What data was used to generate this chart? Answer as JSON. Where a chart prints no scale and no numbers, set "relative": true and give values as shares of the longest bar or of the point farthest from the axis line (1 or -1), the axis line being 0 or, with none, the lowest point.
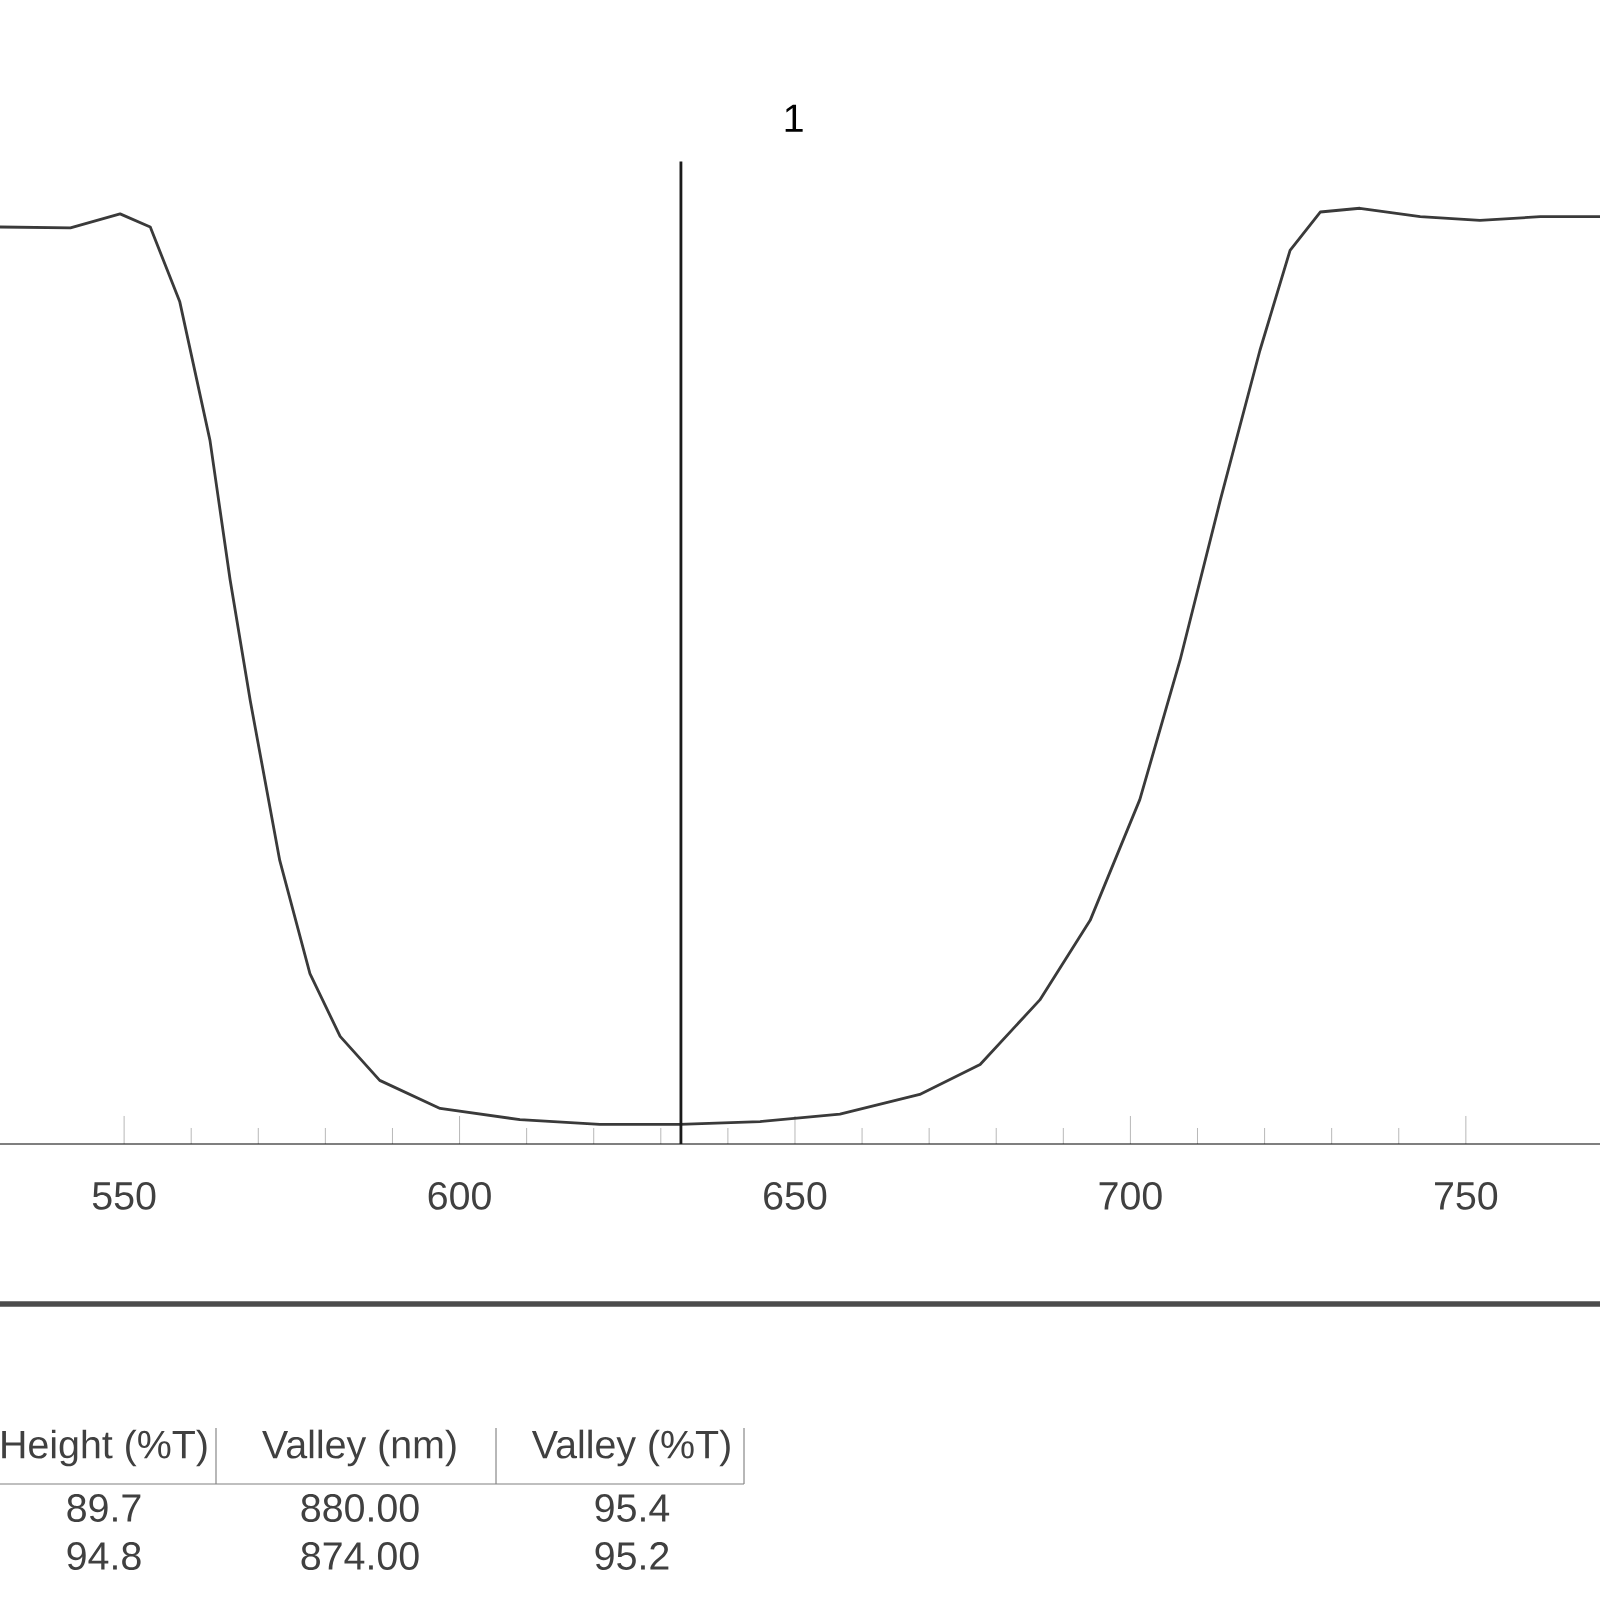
{
  "chart_data": {
    "type": "line",
    "title": "1",
    "relative": true,
    "color": "#3a3a3a",
    "x": [
      531.5,
      542,
      549.4,
      553.9,
      558.3,
      562.8,
      565.8,
      568.8,
      573.2,
      577.7,
      582.2,
      588.1,
      597.1,
      609,
      620.9,
      632.8,
      644.8,
      656.7,
      668.6,
      677.6,
      686.5,
      694,
      701.4,
      707.4,
      713.4,
      719.3,
      723.8,
      728.3,
      734.2,
      743.2,
      752.1,
      761.1,
      770
    ],
    "values": [
      0.98,
      0.979,
      0.994,
      0.98,
      0.9,
      0.752,
      0.603,
      0.474,
      0.303,
      0.182,
      0.115,
      0.068,
      0.038,
      0.026,
      0.021,
      0.021,
      0.024,
      0.032,
      0.053,
      0.085,
      0.154,
      0.239,
      0.368,
      0.517,
      0.688,
      0.848,
      0.955,
      0.996,
      1.0,
      0.991,
      0.987,
      0.991,
      0.991
    ],
    "xlim": [
      531.5,
      770
    ],
    "xticks": [
      550,
      600,
      650,
      700,
      750
    ],
    "ref_lines": [
      {
        "axis": "x",
        "value": 633,
        "color": "#1a1a1a"
      }
    ],
    "annotations": [
      "Height (%T)",
      "Valley (nm)",
      "Valley (%T)",
      "89.7",
      "880.00",
      "95.4",
      "94.8",
      "874.00",
      "95.2"
    ]
  }
}
